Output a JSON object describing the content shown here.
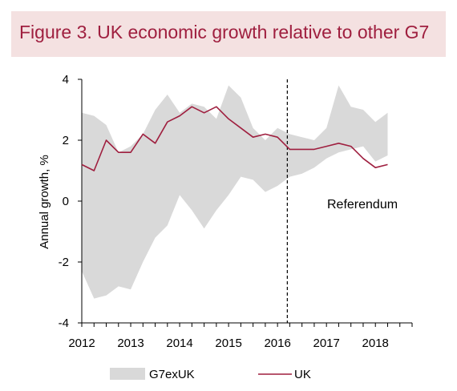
{
  "title": "Figure 3. UK economic growth relative to other G7",
  "colors": {
    "title_bg": "#f4e1e1",
    "title_text": "#9f1f3f",
    "uk_line": "#9f1f3f",
    "band": "#d9d9d9"
  },
  "chart_data": {
    "type": "area",
    "ylabel": "Annual growth, %",
    "xlabel": "",
    "ylim": [
      -4,
      4
    ],
    "yticks": [
      -4,
      -2,
      0,
      2,
      4
    ],
    "xlim": [
      2012.0,
      2018.75
    ],
    "xticks": [
      "2012",
      "2013",
      "2014",
      "2015",
      "2016",
      "2017",
      "2018"
    ],
    "grid": false,
    "legend_position": "bottom",
    "annotation": {
      "label": "Referendum",
      "x": 2016.2
    },
    "x": [
      2012.0,
      2012.25,
      2012.5,
      2012.75,
      2013.0,
      2013.25,
      2013.5,
      2013.75,
      2014.0,
      2014.25,
      2014.5,
      2014.75,
      2015.0,
      2015.25,
      2015.5,
      2015.75,
      2016.0,
      2016.25,
      2016.5,
      2016.75,
      2017.0,
      2017.25,
      2017.5,
      2017.75,
      2018.0,
      2018.25
    ],
    "series": [
      {
        "name": "G7exUK",
        "kind": "band",
        "low": [
          -2.3,
          -3.2,
          -3.1,
          -2.8,
          -2.9,
          -2.0,
          -1.2,
          -0.8,
          0.2,
          -0.3,
          -0.9,
          -0.3,
          0.2,
          0.8,
          0.7,
          0.3,
          0.5,
          0.8,
          0.9,
          1.1,
          1.4,
          1.6,
          1.7,
          1.8,
          1.3,
          1.5
        ],
        "high": [
          2.9,
          2.8,
          2.5,
          1.6,
          1.8,
          2.2,
          3.0,
          3.5,
          2.9,
          3.2,
          3.1,
          2.7,
          3.8,
          3.4,
          2.4,
          2.0,
          2.4,
          2.2,
          2.1,
          2.0,
          2.4,
          3.8,
          3.1,
          3.0,
          2.6,
          2.9
        ]
      },
      {
        "name": "UK",
        "kind": "line",
        "values": [
          1.2,
          1.0,
          2.0,
          1.6,
          1.6,
          2.2,
          1.9,
          2.6,
          2.8,
          3.1,
          2.9,
          3.1,
          2.7,
          2.4,
          2.1,
          2.2,
          2.1,
          1.7,
          1.7,
          1.7,
          1.8,
          1.9,
          1.8,
          1.4,
          1.1,
          1.2
        ]
      }
    ]
  }
}
